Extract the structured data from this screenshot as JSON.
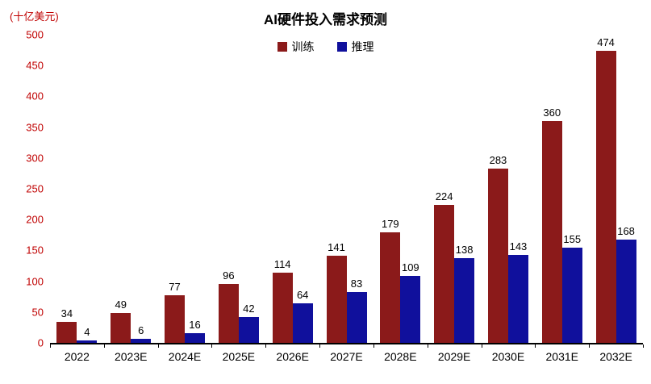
{
  "title": "AI硬件投入需求预测",
  "y_unit": "(十亿美元)",
  "colors": {
    "training": "#8b1a1a",
    "inference": "#10109c",
    "axis_text": "#c00000",
    "label_text": "#000000"
  },
  "legend": [
    {
      "label": "训练",
      "color": "#8b1a1a"
    },
    {
      "label": "推理",
      "color": "#10109c"
    }
  ],
  "chart_data": {
    "type": "bar",
    "title": "AI硬件投入需求预测",
    "ylabel": "(十亿美元)",
    "categories": [
      "2022",
      "2023E",
      "2024E",
      "2025E",
      "2026E",
      "2027E",
      "2028E",
      "2029E",
      "2030E",
      "2031E",
      "2032E"
    ],
    "series": [
      {
        "name": "训练",
        "color": "#8b1a1a",
        "values": [
          34,
          49,
          77,
          96,
          114,
          141,
          179,
          224,
          283,
          360,
          474
        ]
      },
      {
        "name": "推理",
        "color": "#10109c",
        "values": [
          4,
          6,
          16,
          42,
          64,
          83,
          109,
          138,
          143,
          155,
          168
        ]
      }
    ],
    "ylim": [
      0,
      500
    ],
    "yticks": [
      0,
      50,
      100,
      150,
      200,
      250,
      300,
      350,
      400,
      450,
      500
    ],
    "grid": false,
    "legend_position": "top-center"
  }
}
